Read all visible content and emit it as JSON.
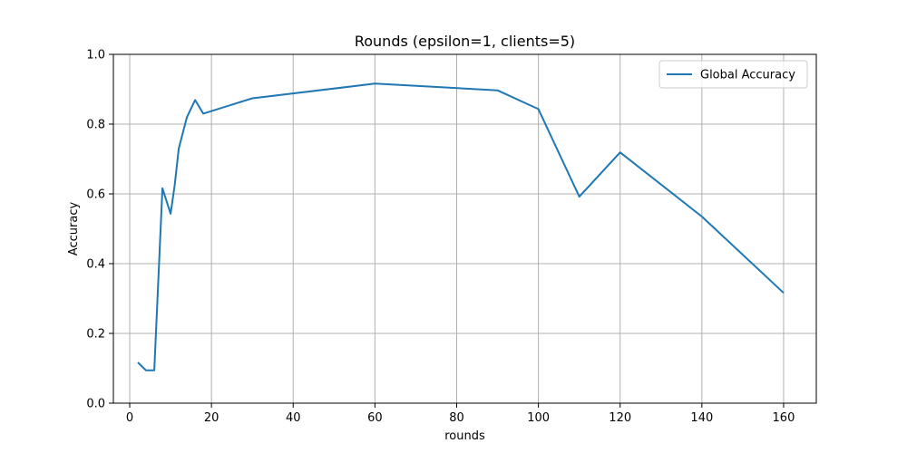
{
  "chart_data": {
    "type": "line",
    "title": "Rounds (epsilon=1, clients=5)",
    "xlabel": "rounds",
    "ylabel": "Accuracy",
    "xlim": [
      -4,
      168
    ],
    "ylim": [
      0.0,
      1.0
    ],
    "xticks": [
      0,
      20,
      40,
      60,
      80,
      100,
      120,
      140,
      160
    ],
    "yticks": [
      0.0,
      0.2,
      0.4,
      0.6,
      0.8,
      1.0
    ],
    "xtick_labels": [
      "0",
      "20",
      "40",
      "60",
      "80",
      "100",
      "120",
      "140",
      "160"
    ],
    "ytick_labels": [
      "0.0",
      "0.2",
      "0.4",
      "0.6",
      "0.8",
      "1.0"
    ],
    "grid": true,
    "legend_position": "top-right",
    "series": [
      {
        "name": "Global Accuracy",
        "color": "#1f77b4",
        "x": [
          2,
          4,
          6,
          8,
          10,
          11,
          12,
          14,
          16,
          18,
          30,
          60,
          90,
          100,
          110,
          120,
          140,
          160
        ],
        "y": [
          0.117,
          0.094,
          0.094,
          0.616,
          0.543,
          0.625,
          0.73,
          0.82,
          0.869,
          0.83,
          0.874,
          0.916,
          0.897,
          0.843,
          0.592,
          0.719,
          0.535,
          0.316
        ]
      }
    ]
  }
}
